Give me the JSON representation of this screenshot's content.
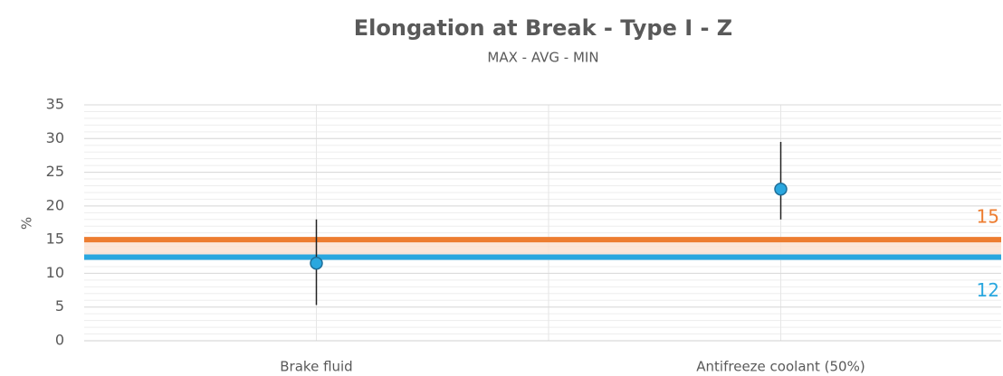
{
  "chart_data": {
    "type": "range",
    "title": "Elongation at Break - Type I - Z",
    "subtitle": "MAX - AVG - MIN",
    "y_label": "%",
    "categories": [
      "Brake fluid",
      "Antifreeze coolant (50%)"
    ],
    "avg": [
      11.5,
      22.5
    ],
    "max": [
      18,
      29.5
    ],
    "min": [
      5.3,
      18
    ],
    "point_color": "#2aa7df",
    "bar_color": "#222222",
    "ylim": [
      0,
      35
    ],
    "yticks": [
      0,
      5,
      10,
      15,
      20,
      25,
      30,
      35
    ],
    "minor_step": 1,
    "grid": true,
    "reference_lines": [
      {
        "value": 15,
        "label": "15",
        "color": "#ed7d31"
      },
      {
        "value": 12.4,
        "label": "12",
        "color": "#2aa7df"
      }
    ],
    "band_color": "#fbe0cf"
  }
}
